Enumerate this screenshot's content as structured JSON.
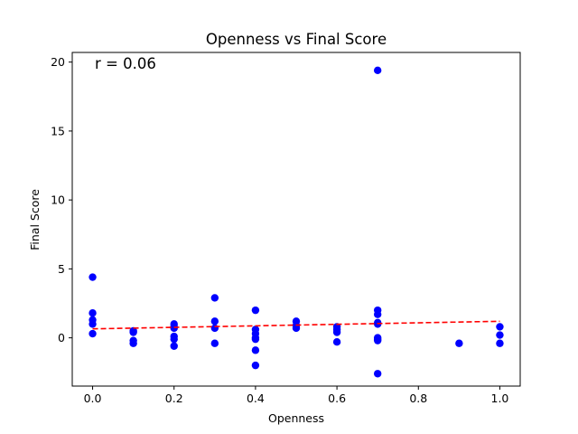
{
  "chart_data": {
    "type": "scatter",
    "title": "Openness vs Final Score",
    "xlabel": "Openness",
    "ylabel": "Final Score",
    "annotation": "r = 0.06",
    "xlim": [
      -0.05,
      1.05
    ],
    "ylim": [
      -3.5,
      20.7
    ],
    "xticks": [
      0.0,
      0.2,
      0.4,
      0.6,
      0.8,
      1.0
    ],
    "xtick_labels": [
      "0.0",
      "0.2",
      "0.4",
      "0.6",
      "0.8",
      "1.0"
    ],
    "yticks": [
      0,
      5,
      10,
      15,
      20
    ],
    "ytick_labels": [
      "0",
      "5",
      "10",
      "15",
      "20"
    ],
    "grid": false,
    "colors": {
      "points": "#0000ff",
      "trend": "#ff0000"
    },
    "series": [
      {
        "x": [
          0.0,
          0.0,
          0.0,
          0.0,
          0.0,
          0.1,
          0.1,
          0.1,
          0.1,
          0.2,
          0.2,
          0.2,
          0.2,
          0.2,
          0.2,
          0.3,
          0.3,
          0.3,
          0.3,
          0.4,
          0.4,
          0.4,
          0.4,
          0.4,
          0.4,
          0.4,
          0.5,
          0.5,
          0.5,
          0.6,
          0.6,
          0.6,
          0.6,
          0.7,
          0.7,
          0.7,
          0.7,
          0.7,
          0.7,
          0.7,
          0.7,
          0.7,
          0.9,
          1.0,
          1.0,
          1.0
        ],
        "y": [
          4.4,
          1.8,
          1.3,
          1.0,
          0.3,
          0.5,
          0.4,
          -0.2,
          -0.4,
          1.0,
          0.7,
          0.1,
          -0.1,
          -0.6,
          0.8,
          2.9,
          1.2,
          0.7,
          -0.4,
          2.0,
          0.6,
          0.3,
          0.0,
          -0.1,
          -0.9,
          -2.0,
          1.2,
          0.9,
          0.7,
          0.8,
          0.6,
          0.4,
          -0.3,
          19.4,
          2.0,
          1.7,
          1.1,
          1.0,
          0.0,
          -0.1,
          -0.2,
          -2.6,
          -0.4,
          0.8,
          0.2,
          -0.4
        ]
      }
    ],
    "trendline": {
      "x": [
        0.0,
        1.0
      ],
      "y": [
        0.65,
        1.2
      ],
      "style": "dashed"
    }
  }
}
